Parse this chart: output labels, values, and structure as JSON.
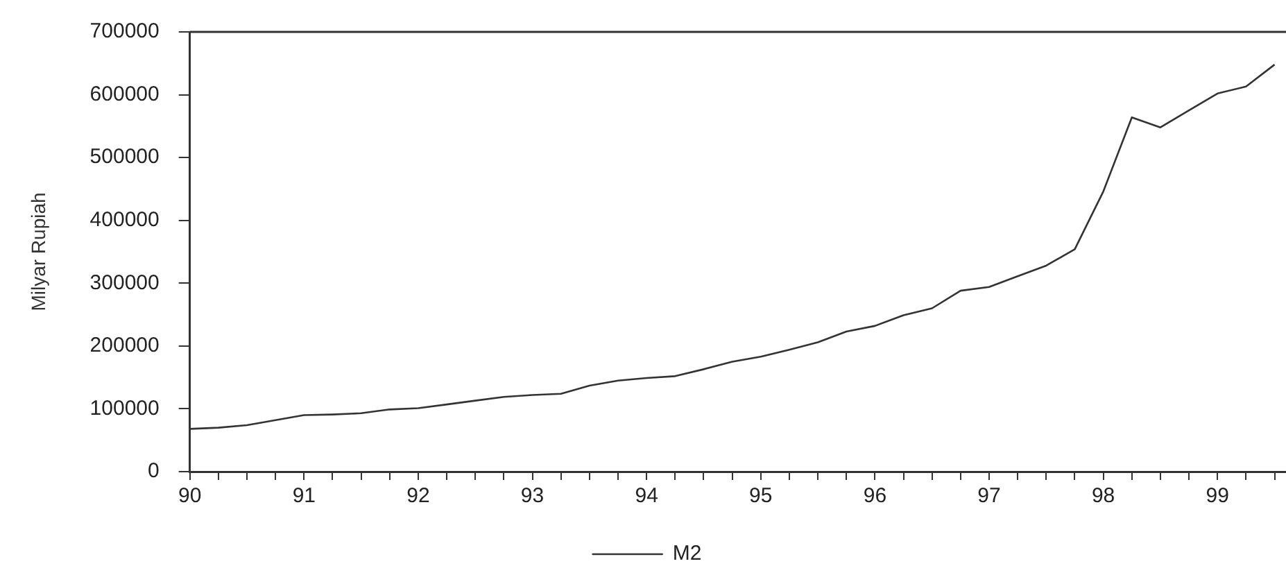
{
  "chart_data": {
    "type": "line",
    "ylabel": "Milyar Rupiah",
    "x": [
      90,
      90.25,
      90.5,
      90.75,
      91,
      91.25,
      91.5,
      91.75,
      92,
      92.25,
      92.5,
      92.75,
      93,
      93.25,
      93.5,
      93.75,
      94,
      94.25,
      94.5,
      94.75,
      95,
      95.25,
      95.5,
      95.75,
      96,
      96.25,
      96.5,
      96.75,
      97,
      97.25,
      97.5,
      97.75,
      98,
      98.25,
      98.5,
      98.75,
      99,
      99.25,
      99.5
    ],
    "series": [
      {
        "name": "M2",
        "color": "#333333",
        "values": [
          68000,
          70000,
          74000,
          82000,
          90000,
          91000,
          93000,
          99000,
          101000,
          107000,
          113000,
          119000,
          122000,
          124000,
          137000,
          145000,
          149000,
          152000,
          163000,
          175000,
          183000,
          194000,
          206000,
          223000,
          232000,
          249000,
          260000,
          288000,
          294000,
          311000,
          328000,
          354000,
          446000,
          564000,
          548000,
          575000,
          602000,
          613000,
          648000
        ]
      }
    ],
    "xlim": [
      90,
      99.6
    ],
    "xticks": [
      90,
      {
        "value": 90.25,
        "label": null
      },
      {
        "value": 90.5,
        "label": null
      },
      {
        "value": 90.75,
        "label": null
      },
      91,
      {
        "value": 91.25,
        "label": null
      },
      {
        "value": 91.5,
        "label": null
      },
      {
        "value": 91.75,
        "label": null
      },
      92,
      {
        "value": 92.25,
        "label": null
      },
      {
        "value": 92.5,
        "label": null
      },
      {
        "value": 92.75,
        "label": null
      },
      93,
      {
        "value": 93.25,
        "label": null
      },
      {
        "value": 93.5,
        "label": null
      },
      {
        "value": 93.75,
        "label": null
      },
      94,
      {
        "value": 94.25,
        "label": null
      },
      {
        "value": 94.5,
        "label": null
      },
      {
        "value": 94.75,
        "label": null
      },
      95,
      {
        "value": 95.25,
        "label": null
      },
      {
        "value": 95.5,
        "label": null
      },
      {
        "value": 95.75,
        "label": null
      },
      96,
      {
        "value": 96.25,
        "label": null
      },
      {
        "value": 96.5,
        "label": null
      },
      {
        "value": 96.75,
        "label": null
      },
      97,
      {
        "value": 97.25,
        "label": null
      },
      {
        "value": 97.5,
        "label": null
      },
      {
        "value": 97.75,
        "label": null
      },
      98,
      {
        "value": 98.25,
        "label": null
      },
      {
        "value": 98.5,
        "label": null
      },
      {
        "value": 98.75,
        "label": null
      },
      99,
      {
        "value": 99.25,
        "label": null
      },
      {
        "value": 99.5,
        "label": null
      }
    ],
    "ylim": [
      0,
      700000
    ],
    "yticks": [
      0,
      100000,
      200000,
      300000,
      400000,
      500000,
      600000,
      700000
    ],
    "grid": false,
    "legend": "bottom",
    "marker": "none",
    "line_style": "solid"
  }
}
